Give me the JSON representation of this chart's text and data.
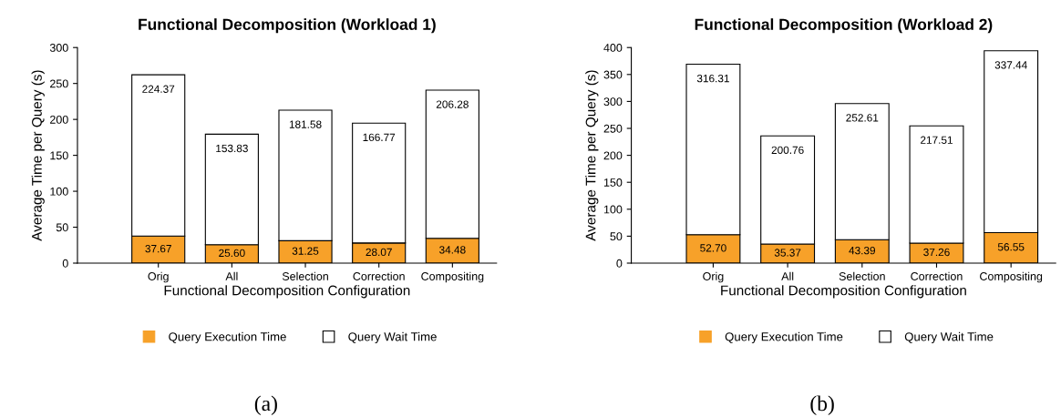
{
  "chart_data": [
    {
      "type": "bar",
      "stacked": true,
      "title": "Functional Decomposition (Workload 1)",
      "xlabel": "Functional Decomposition Configuration",
      "ylabel": "Average Time per Query (s)",
      "categories": [
        "Orig",
        "All",
        "Selection",
        "Correction",
        "Compositing"
      ],
      "series": [
        {
          "name": "Query Execution Time",
          "color": "#f7a129",
          "values": [
            37.67,
            25.6,
            31.25,
            28.07,
            34.48
          ],
          "value_labels": [
            "37.67",
            "25.60",
            "31.25",
            "28.07",
            "34.48"
          ]
        },
        {
          "name": "Query Wait Time",
          "color": "#ffffff",
          "values": [
            224.37,
            153.83,
            181.58,
            166.77,
            206.28
          ],
          "value_labels": [
            "224.37",
            "153.83",
            "181.58",
            "166.77",
            "206.28"
          ]
        }
      ],
      "ylim": [
        0,
        300
      ],
      "yticks": [
        0,
        50,
        100,
        150,
        200,
        250,
        300
      ],
      "legend": "bottom",
      "grid": false,
      "annotations": [
        "(a)"
      ]
    },
    {
      "type": "bar",
      "stacked": true,
      "title": "Functional Decomposition (Workload 2)",
      "xlabel": "Functional Decomposition Configuration",
      "ylabel": "Average Time per Query (s)",
      "categories": [
        "Orig",
        "All",
        "Selection",
        "Correction",
        "Compositing"
      ],
      "series": [
        {
          "name": "Query Execution Time",
          "color": "#f7a129",
          "values": [
            52.7,
            35.37,
            43.39,
            37.26,
            56.55
          ],
          "value_labels": [
            "52.70",
            "35.37",
            "43.39",
            "37.26",
            "56.55"
          ]
        },
        {
          "name": "Query Wait Time",
          "color": "#ffffff",
          "values": [
            316.31,
            200.76,
            252.61,
            217.51,
            337.44
          ],
          "value_labels": [
            "316.31",
            "200.76",
            "252.61",
            "217.51",
            "337.44"
          ]
        }
      ],
      "ylim": [
        0,
        400
      ],
      "yticks": [
        0,
        50,
        100,
        150,
        200,
        250,
        300,
        350,
        400
      ],
      "legend": "bottom",
      "grid": false,
      "annotations": [
        "(b)"
      ]
    }
  ]
}
